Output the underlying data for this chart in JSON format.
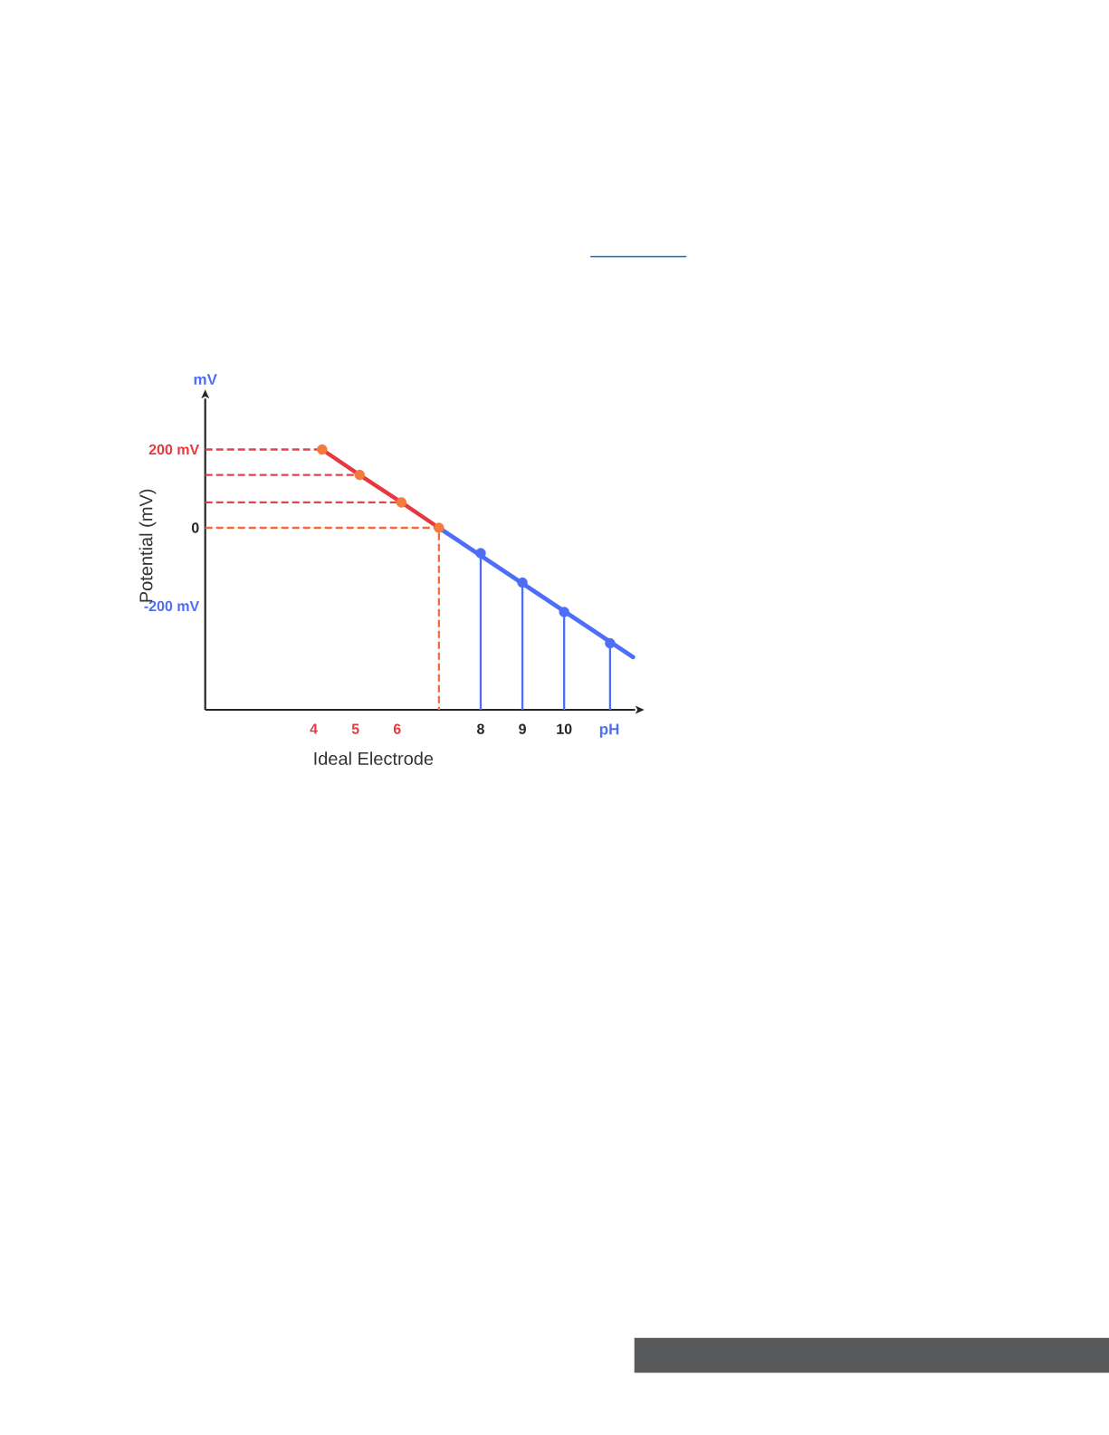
{
  "chart_data": {
    "type": "line",
    "xlabel": "pH",
    "ylabel": "Potential (mV)",
    "annotations": [
      "mV",
      "Ideal Electrode"
    ],
    "xlim": [
      1.4,
      11.7
    ],
    "ylim": [
      -465,
      330
    ],
    "xticks": [
      4,
      5,
      6,
      8,
      9,
      10
    ],
    "yticks": [
      {
        "value": 200,
        "label": "200 mV"
      },
      0,
      {
        "value": -200,
        "label": "-200 mV"
      }
    ],
    "series": [
      {
        "color": "#4f6ef7",
        "x": [
          7,
          11.65
        ],
        "values": [
          0,
          -330
        ]
      },
      {
        "color": "#e0434d",
        "line_style": "dashed",
        "x": [
          1.4,
          4.2
        ],
        "values": [
          200,
          200
        ]
      },
      {
        "color": "#e0434d",
        "line_style": "dashed",
        "x": [
          1.4,
          5.1
        ],
        "values": [
          135,
          135
        ]
      },
      {
        "color": "#e0434d",
        "line_style": "dashed",
        "x": [
          1.4,
          6.1
        ],
        "values": [
          65,
          65
        ]
      },
      {
        "color": "#f26b38",
        "line_style": "dashed",
        "x": [
          1.4,
          7,
          7
        ],
        "values": [
          0,
          0,
          -465
        ]
      },
      {
        "color": "#4f6ef7",
        "x": [
          8,
          8
        ],
        "values": [
          -465,
          -65
        ]
      },
      {
        "color": "#4f6ef7",
        "x": [
          9,
          9
        ],
        "values": [
          -465,
          -140
        ]
      },
      {
        "color": "#4f6ef7",
        "x": [
          10,
          10
        ],
        "values": [
          -465,
          -215
        ]
      },
      {
        "color": "#4f6ef7",
        "x": [
          11.1,
          11.1
        ],
        "values": [
          -465,
          -295
        ]
      },
      {
        "color": "#e8383f",
        "marker": "circle",
        "colors": [
          "#f47b3b",
          "#f47b3b",
          "#f47b3b",
          "#f47b3b"
        ],
        "x": [
          4.2,
          5.1,
          6.1,
          7
        ],
        "values": [
          200,
          135,
          65,
          0
        ]
      },
      {
        "type": "scatter",
        "color": "#4f6ef7",
        "marker": "circle",
        "x": [
          8,
          9,
          10,
          11.1
        ],
        "values": [
          -65,
          -140,
          -215,
          -295
        ]
      }
    ]
  }
}
